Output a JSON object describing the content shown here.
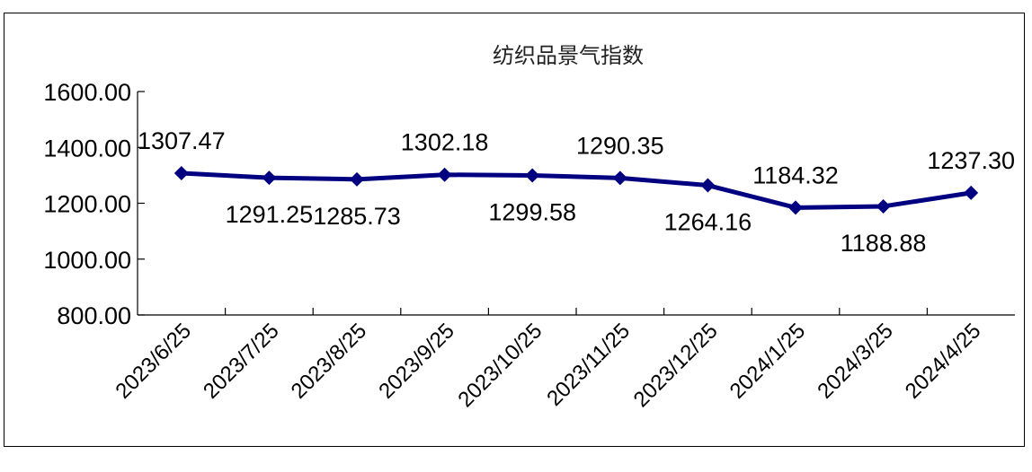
{
  "chart_data": {
    "type": "line",
    "title": "纺织品景气指数",
    "categories": [
      "2023/6/25",
      "2023/7/25",
      "2023/8/25",
      "2023/9/25",
      "2023/10/25",
      "2023/11/25",
      "2023/12/25",
      "2024/1/25",
      "2024/3/25",
      "2024/4/25"
    ],
    "series": [
      {
        "values": [
          1307.47,
          1291.25,
          1285.73,
          1302.18,
          1299.58,
          1290.35,
          1264.16,
          1184.32,
          1188.88,
          1237.3
        ],
        "labels": [
          "1307.47",
          "1291.25",
          "1285.73",
          "1302.18",
          "1299.58",
          "1290.35",
          "1264.16",
          "1184.32",
          "1188.88",
          "1237.30"
        ],
        "label_positions": [
          "above",
          "below",
          "below",
          "above",
          "below",
          "above",
          "below",
          "above",
          "below",
          "above"
        ],
        "color": "#000080"
      }
    ],
    "ylim": [
      800,
      1600
    ],
    "yticks": [
      800,
      1000,
      1200,
      1400,
      1600
    ],
    "ytick_labels": [
      "800.00",
      "1000.00",
      "1200.00",
      "1400.00",
      "1600.00"
    ],
    "grid": false,
    "legend": "none"
  }
}
